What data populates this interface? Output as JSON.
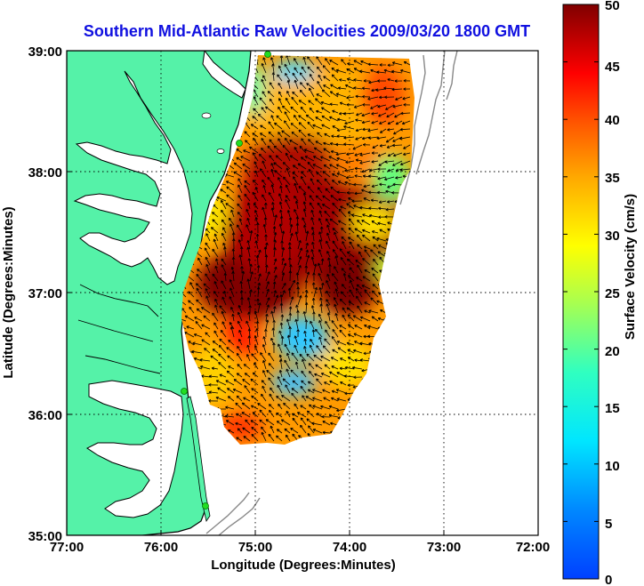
{
  "title": "Southern Mid-Atlantic Raw Velocities 2009/03/20 1800 GMT",
  "xlabel": "Longitude (Degrees:Minutes)",
  "ylabel": "Latitude (Degrees:Minutes)",
  "x_ticks": [
    "77:00",
    "76:00",
    "75:00",
    "74:00",
    "73:00",
    "72:00"
  ],
  "y_ticks": [
    "39:00",
    "38:00",
    "37:00",
    "36:00",
    "35:00"
  ],
  "colorbar": {
    "label": "Surface Velocity (cm/s)",
    "ticks": [
      "50",
      "45",
      "40",
      "35",
      "30",
      "25",
      "20",
      "15",
      "10",
      "5",
      "0"
    ],
    "range": [
      0,
      50
    ]
  },
  "colors": {
    "land": "#55f2a8",
    "water": "#ffffff",
    "title": "#1010e0",
    "grid": "#000000",
    "bathymetry": "#888888",
    "station": "#22dd22"
  }
}
